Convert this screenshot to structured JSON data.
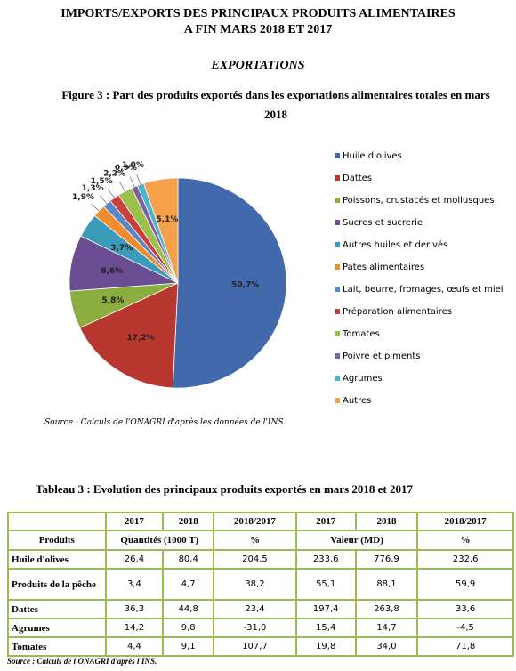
{
  "header": {
    "title_line1": "IMPORTS/EXPORTS DES PRINCIPAUX PRODUITS ALIMENTAIRES",
    "title_line2": "A FIN MARS 2018 ET 2017",
    "section": "EXPORTATIONS"
  },
  "chart_data": {
    "type": "pie",
    "title": "Figure 3 : Part des produits exportés dans les exportations alimentaires totales en mars 2018",
    "categories": [
      "Huile d'olives",
      "Dattes",
      "Poissons, crustacés et mollusques",
      "Sucres et sucrerie",
      "Autres huiles et derivés",
      "Pates alimentaires",
      "Lait, beurre, fromages, œufs et miel",
      "Préparation alimentaires",
      "Tomates",
      "Poivre et piments",
      "Agrumes",
      "Autres"
    ],
    "values": [
      50.7,
      17.2,
      5.8,
      8.6,
      3.7,
      1.9,
      1.3,
      1.5,
      2.2,
      0.9,
      1.0,
      5.1
    ],
    "value_labels": [
      "50,7%",
      "17,2%",
      "5,8%",
      "8,6%",
      "3,7%",
      "1,9%",
      "1,3%",
      "1,5%",
      "2,2%",
      "0,9%",
      "1,0%",
      "5,1%"
    ],
    "colors": [
      "#4169ab",
      "#b8372f",
      "#8bad40",
      "#6a4d93",
      "#3a9cb8",
      "#f08c2c",
      "#5a87c8",
      "#c9413a",
      "#9cc04c",
      "#7d5fa5",
      "#4fb1cf",
      "#f5a04a"
    ],
    "source": "Source : Calculs de l'ONAGRI d'après les données de l'INS."
  },
  "table": {
    "title": "Tableau 3 : Evolution des principaux produits exportés en mars 2018 et 2017",
    "header_row1": [
      "2017",
      "2018",
      "2018/2017",
      "2017",
      "2018",
      "2018/2017"
    ],
    "header_row2": [
      "Produits",
      "Quantités (1000 T)",
      "%",
      "Valeur (MD)",
      "%"
    ],
    "rows": [
      [
        "Huile d'olives",
        "26,4",
        "80,4",
        "204,5",
        "233,6",
        "776,9",
        "232,6"
      ],
      [
        "Produits de la pêche",
        "3,4",
        "4,7",
        "38,2",
        "55,1",
        "88,1",
        "59,9"
      ],
      [
        "Dattes",
        "36,3",
        "44,8",
        "23,4",
        "197,4",
        "263,8",
        "33,6"
      ],
      [
        "Agrumes",
        "14,2",
        "9,8",
        "-31,0",
        "15,4",
        "14,7",
        "-4,5"
      ],
      [
        "Tomates",
        "4,4",
        "9,1",
        "107,7",
        "19,8",
        "34,0",
        "71,8"
      ]
    ],
    "source": "Source : Calculs de l'ONAGRI d'après l'INS."
  }
}
